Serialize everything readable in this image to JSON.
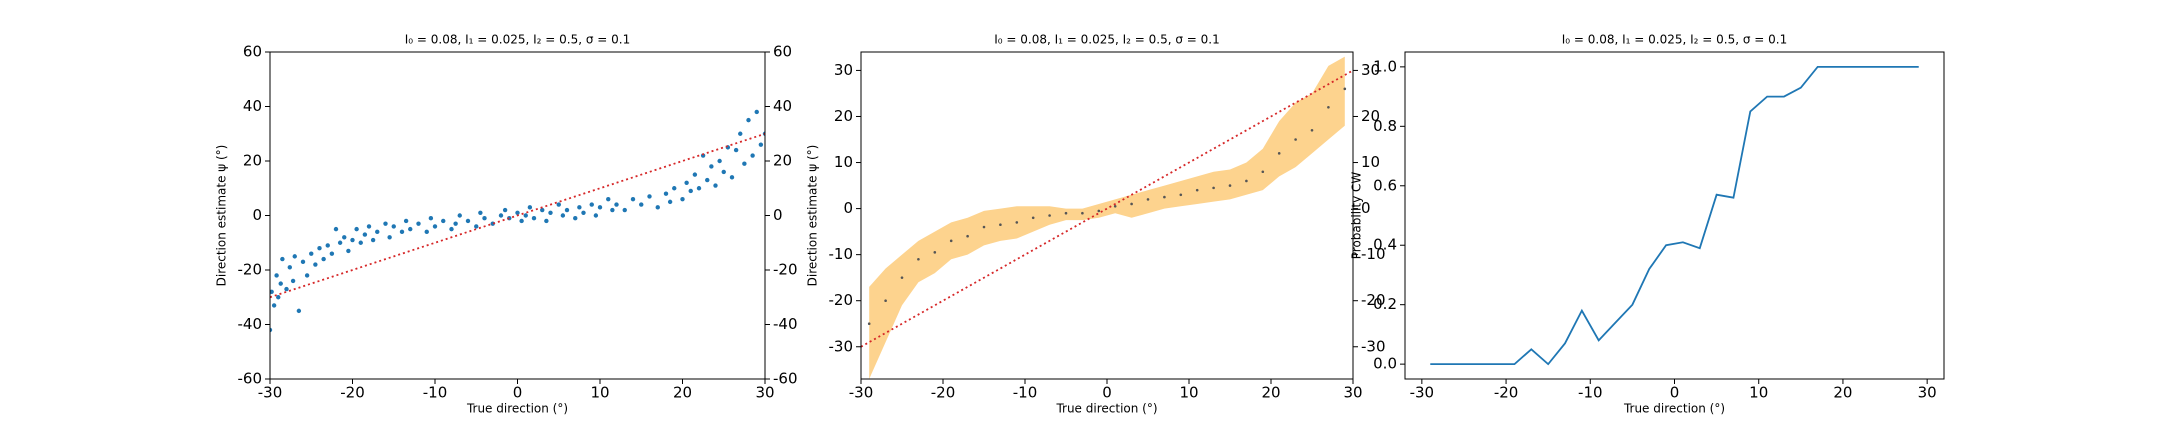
{
  "chart_data": [
    {
      "type": "scatter",
      "title": "I₀ = 0.08, I₁ = 0.025, I₂ = 0.5, σ = 0.1",
      "xlabel": "True direction (°)",
      "ylabel": "Direction estimate ψ (°)",
      "color": "#1f77b4",
      "x": [
        -30,
        -29.8,
        -29.5,
        -29.2,
        -29,
        -28.7,
        -28.5,
        -28,
        -27.6,
        -27.2,
        -27,
        -26.5,
        -26,
        -25.5,
        -25,
        -24.5,
        -24,
        -23.5,
        -23,
        -22.5,
        -22,
        -21.5,
        -21,
        -20.5,
        -20,
        -19.5,
        -19,
        -18.5,
        -18,
        -17.5,
        -17,
        -16,
        -15.5,
        -15,
        -14,
        -13.5,
        -13,
        -12,
        -11,
        -10.5,
        -10,
        -9,
        -8,
        -7.5,
        -7,
        -6,
        -5,
        -4.5,
        -4,
        -3,
        -2,
        -1.5,
        -1,
        0,
        0.5,
        1,
        1.5,
        2,
        3,
        3.5,
        4,
        5,
        5.5,
        6,
        7,
        7.5,
        8,
        9,
        9.5,
        10,
        11,
        11.5,
        12,
        13,
        14,
        15,
        16,
        17,
        18,
        18.5,
        19,
        20,
        20.5,
        21,
        21.5,
        22,
        22.5,
        23,
        23.5,
        24,
        24.5,
        25,
        25.5,
        26,
        26.5,
        27,
        27.5,
        28,
        28.5,
        29,
        29.5,
        30
      ],
      "values": [
        -42,
        -28,
        -33,
        -22,
        -30,
        -25,
        -16,
        -27,
        -19,
        -24,
        -15,
        -35,
        -17,
        -22,
        -14,
        -18,
        -12,
        -16,
        -11,
        -14,
        -5,
        -10,
        -8,
        -13,
        -9,
        -5,
        -10,
        -7,
        -4,
        -9,
        -6,
        -3,
        -8,
        -4,
        -6,
        -2,
        -5,
        -3,
        -6,
        -1,
        -4,
        -2,
        -5,
        -3,
        0,
        -2,
        -4,
        1,
        -1,
        -3,
        0,
        2,
        -1,
        1,
        -2,
        0,
        3,
        -1,
        2,
        -2,
        1,
        4,
        0,
        2,
        -1,
        3,
        1,
        4,
        0,
        3,
        6,
        2,
        4,
        2,
        6,
        4,
        7,
        3,
        8,
        5,
        10,
        6,
        12,
        9,
        15,
        10,
        22,
        13,
        18,
        11,
        20,
        16,
        25,
        14,
        24,
        30,
        19,
        35,
        22,
        38,
        26,
        30
      ],
      "identity_line": {
        "x": [
          -30,
          30
        ],
        "y": [
          -30,
          30
        ],
        "color": "#d62728"
      },
      "xlim": [
        -30,
        30
      ],
      "xticks": [
        -30,
        -20,
        -10,
        0,
        10,
        20,
        30
      ],
      "ylim": [
        -60,
        60
      ],
      "yticks": [
        -60,
        -40,
        -20,
        0,
        20,
        40,
        60
      ],
      "y2lim": [
        -60,
        60
      ],
      "y2ticks": [
        -60,
        -40,
        -20,
        0,
        20,
        40,
        60
      ]
    },
    {
      "type": "band",
      "title": "I₀ = 0.08, I₁ = 0.025, I₂ = 0.5, σ = 0.1",
      "xlabel": "True direction (°)",
      "ylabel": "Direction estimate ψ (°)",
      "color": "#555555",
      "band_color": "#fdd38e",
      "x": [
        -29,
        -27,
        -25,
        -23,
        -21,
        -19,
        -17,
        -15,
        -13,
        -11,
        -9,
        -7,
        -5,
        -3,
        -1,
        1,
        3,
        5,
        7,
        9,
        11,
        13,
        15,
        17,
        19,
        21,
        23,
        25,
        27,
        29
      ],
      "values": [
        -25,
        -20,
        -15,
        -11,
        -9.5,
        -7,
        -6,
        -4,
        -3.5,
        -3,
        -2,
        -1.5,
        -1,
        -1,
        -0.5,
        0.5,
        1,
        2,
        2.5,
        3,
        4,
        4.5,
        5,
        6,
        8,
        12,
        15,
        17,
        22,
        26
      ],
      "upper": [
        -17,
        -13,
        -10,
        -7,
        -5,
        -3,
        -2,
        -0.5,
        0,
        0.5,
        0.5,
        0.5,
        0,
        0,
        1,
        2,
        3,
        4,
        5,
        6,
        7,
        8,
        8.5,
        10,
        13,
        19,
        23,
        25,
        31,
        33
      ],
      "lower": [
        -37,
        -29,
        -21,
        -16,
        -14,
        -11,
        -10,
        -8,
        -7,
        -6.5,
        -5,
        -3.5,
        -2.5,
        -2.5,
        -2,
        -1,
        -2,
        -1,
        0,
        0.5,
        1,
        1.5,
        2,
        3,
        4,
        7,
        9,
        12,
        15,
        18
      ],
      "identity_line": {
        "x": [
          -30,
          30
        ],
        "y": [
          -30,
          30
        ],
        "color": "#d62728"
      },
      "xlim": [
        -30,
        30
      ],
      "xticks": [
        -30,
        -20,
        -10,
        0,
        10,
        20,
        30
      ],
      "ylim": [
        -37,
        34
      ],
      "yticks": [
        -30,
        -20,
        -10,
        0,
        10,
        20,
        30
      ],
      "y2lim": [
        -37,
        34
      ],
      "y2ticks": [
        -30,
        -20,
        -10,
        0,
        10,
        20,
        30
      ]
    },
    {
      "type": "line",
      "title": "I₀ = 0.08, I₁ = 0.025, I₂ = 0.5, σ = 0.1",
      "xlabel": "True direction (°)",
      "ylabel": "Probability CW",
      "color": "#1f77b4",
      "x": [
        -29,
        -27,
        -25,
        -23,
        -21,
        -19,
        -17,
        -15,
        -13,
        -11,
        -9,
        -7,
        -5,
        -3,
        -1,
        1,
        3,
        5,
        7,
        9,
        11,
        13,
        15,
        17,
        19,
        21,
        23,
        25,
        27,
        29
      ],
      "values": [
        0,
        0,
        0,
        0,
        0,
        0,
        0.05,
        0,
        0.07,
        0.18,
        0.08,
        0.14,
        0.2,
        0.32,
        0.4,
        0.41,
        0.39,
        0.57,
        0.56,
        0.85,
        0.9,
        0.9,
        0.93,
        1,
        1,
        1,
        1,
        1,
        1,
        1
      ],
      "xlim": [
        -32,
        32
      ],
      "xticks": [
        -30,
        -20,
        -10,
        0,
        10,
        20,
        30
      ],
      "ylim": [
        -0.05,
        1.05
      ],
      "yticks": [
        {
          "value": 0,
          "label": "0.0"
        },
        0.2,
        0.4,
        0.6,
        0.8,
        {
          "value": 1,
          "label": "1.0"
        }
      ]
    }
  ]
}
